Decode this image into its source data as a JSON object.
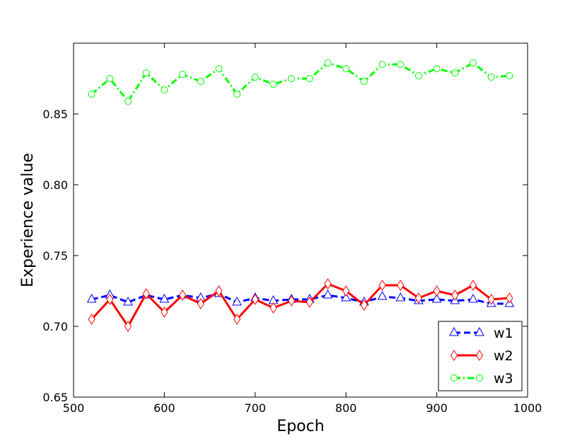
{
  "chart_data": {
    "type": "line",
    "xlabel": "Epoch",
    "ylabel": "Experience value",
    "xlim": [
      500,
      1000
    ],
    "ylim": [
      0.65,
      0.9
    ],
    "xticks": [
      500,
      600,
      700,
      800,
      900,
      1000
    ],
    "xtick_labels": [
      "500",
      "600",
      "700",
      "800",
      "900",
      "1000"
    ],
    "yticks": [
      0.65,
      0.7,
      0.75,
      0.8,
      0.85
    ],
    "ytick_labels": [
      "0.65",
      "0.70",
      "0.75",
      "0.80",
      "0.85"
    ],
    "grid": false,
    "legend_position": "lower-right",
    "x": [
      520,
      540,
      560,
      580,
      600,
      620,
      640,
      660,
      680,
      700,
      720,
      740,
      760,
      780,
      800,
      820,
      840,
      860,
      880,
      900,
      920,
      940,
      960,
      980
    ],
    "series": [
      {
        "name": "w1",
        "color": "#0000ff",
        "line_style": "dashed",
        "marker": "triangle",
        "values": [
          0.719,
          0.722,
          0.717,
          0.722,
          0.719,
          0.722,
          0.72,
          0.723,
          0.717,
          0.72,
          0.718,
          0.719,
          0.719,
          0.722,
          0.72,
          0.717,
          0.721,
          0.72,
          0.718,
          0.719,
          0.718,
          0.719,
          0.716,
          0.716
        ]
      },
      {
        "name": "w2",
        "color": "#ff0000",
        "line_style": "solid",
        "marker": "diamond",
        "values": [
          0.705,
          0.719,
          0.7,
          0.723,
          0.71,
          0.722,
          0.716,
          0.725,
          0.705,
          0.719,
          0.713,
          0.718,
          0.717,
          0.73,
          0.725,
          0.715,
          0.729,
          0.729,
          0.72,
          0.725,
          0.722,
          0.729,
          0.719,
          0.72
        ]
      },
      {
        "name": "w3",
        "color": "#00ff00",
        "line_style": "dashdot",
        "marker": "circle",
        "values": [
          0.864,
          0.875,
          0.859,
          0.879,
          0.867,
          0.878,
          0.873,
          0.882,
          0.864,
          0.876,
          0.871,
          0.875,
          0.875,
          0.886,
          0.882,
          0.873,
          0.885,
          0.885,
          0.877,
          0.882,
          0.879,
          0.886,
          0.876,
          0.877
        ]
      }
    ]
  }
}
